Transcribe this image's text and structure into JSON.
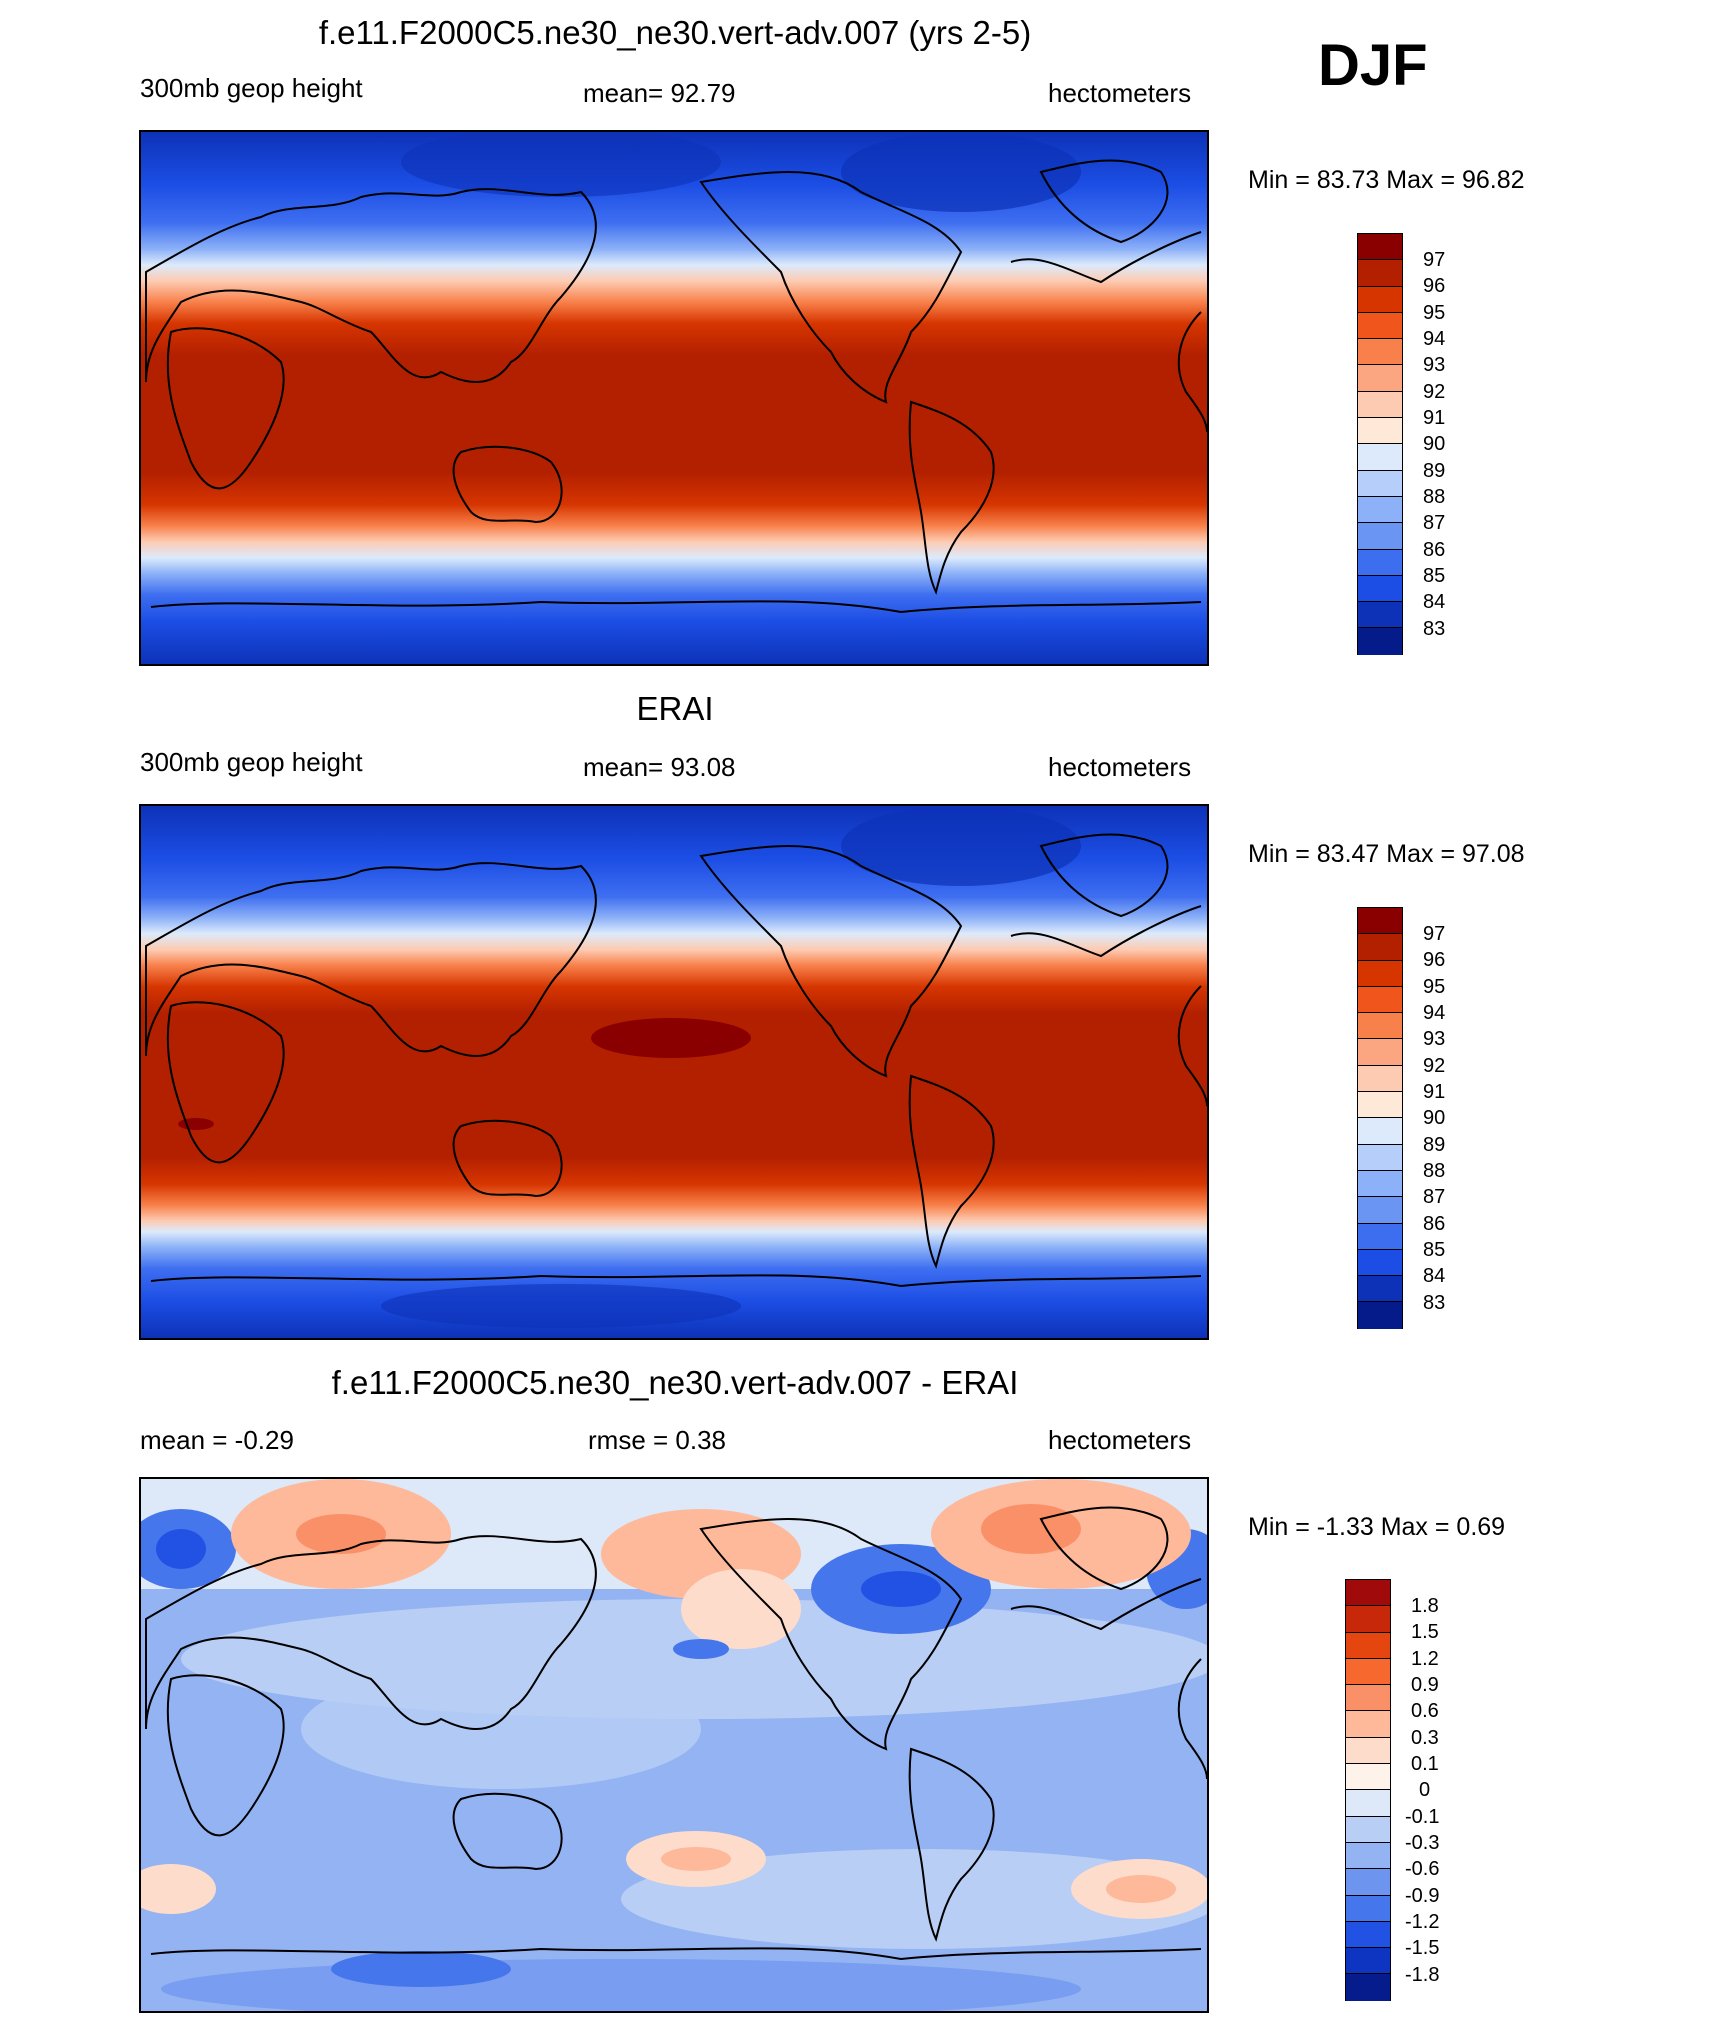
{
  "season": "DJF",
  "panels": [
    {
      "id": "model",
      "title": "f.e11.F2000C5.ne30_ne30.vert-adv.007 (yrs 2-5)",
      "left_label": "300mb geop height",
      "center_label": "mean=  92.79",
      "right_label": "hectometers",
      "minmax": "Min =  83.73 Max =  96.82",
      "colorbar_labels": [
        "97",
        "96",
        "95",
        "94",
        "93",
        "92",
        "91",
        "90",
        "89",
        "88",
        "87",
        "86",
        "85",
        "84",
        "83"
      ],
      "colors": [
        "#8a0000",
        "#b32000",
        "#d63500",
        "#f0561c",
        "#f8804a",
        "#fba680",
        "#fdcbb2",
        "#fee8d8",
        "#ddeafb",
        "#b6cffa",
        "#8cb1f8",
        "#6b95f3",
        "#3e6ef0",
        "#1c4ee5",
        "#0d32b8",
        "#061b8a"
      ]
    },
    {
      "id": "obs",
      "title": "ERAI",
      "left_label": "300mb geop height",
      "center_label": "mean=  93.08",
      "right_label": "hectometers",
      "minmax": "Min =  83.47 Max =  97.08",
      "colorbar_labels": [
        "97",
        "96",
        "95",
        "94",
        "93",
        "92",
        "91",
        "90",
        "89",
        "88",
        "87",
        "86",
        "85",
        "84",
        "83"
      ],
      "colors": [
        "#8a0000",
        "#b32000",
        "#d63500",
        "#f0561c",
        "#f8804a",
        "#fba680",
        "#fdcbb2",
        "#fee8d8",
        "#ddeafb",
        "#b6cffa",
        "#8cb1f8",
        "#6b95f3",
        "#3e6ef0",
        "#1c4ee5",
        "#0d32b8",
        "#061b8a"
      ]
    },
    {
      "id": "diff",
      "title": "f.e11.F2000C5.ne30_ne30.vert-adv.007 - ERAI",
      "left_label": "mean =  -0.29",
      "center_label": "rmse =   0.38",
      "right_label": "hectometers",
      "minmax": "Min =  -1.33 Max =   0.69",
      "colorbar_labels": [
        "1.8",
        "1.5",
        "1.2",
        "0.9",
        "0.6",
        "0.3",
        "0.1",
        "0",
        "-0.1",
        "-0.3",
        "-0.6",
        "-0.9",
        "-1.2",
        "-1.5",
        "-1.8"
      ],
      "colors": [
        "#a10a0a",
        "#c8280a",
        "#e5450f",
        "#f6682d",
        "#fa9068",
        "#fdb99a",
        "#fedccb",
        "#fdf3ea",
        "#dde8f8",
        "#b8cef5",
        "#94b3f2",
        "#6d94ef",
        "#4676ec",
        "#2252e4",
        "#0e35c2",
        "#061c8c"
      ]
    }
  ]
}
